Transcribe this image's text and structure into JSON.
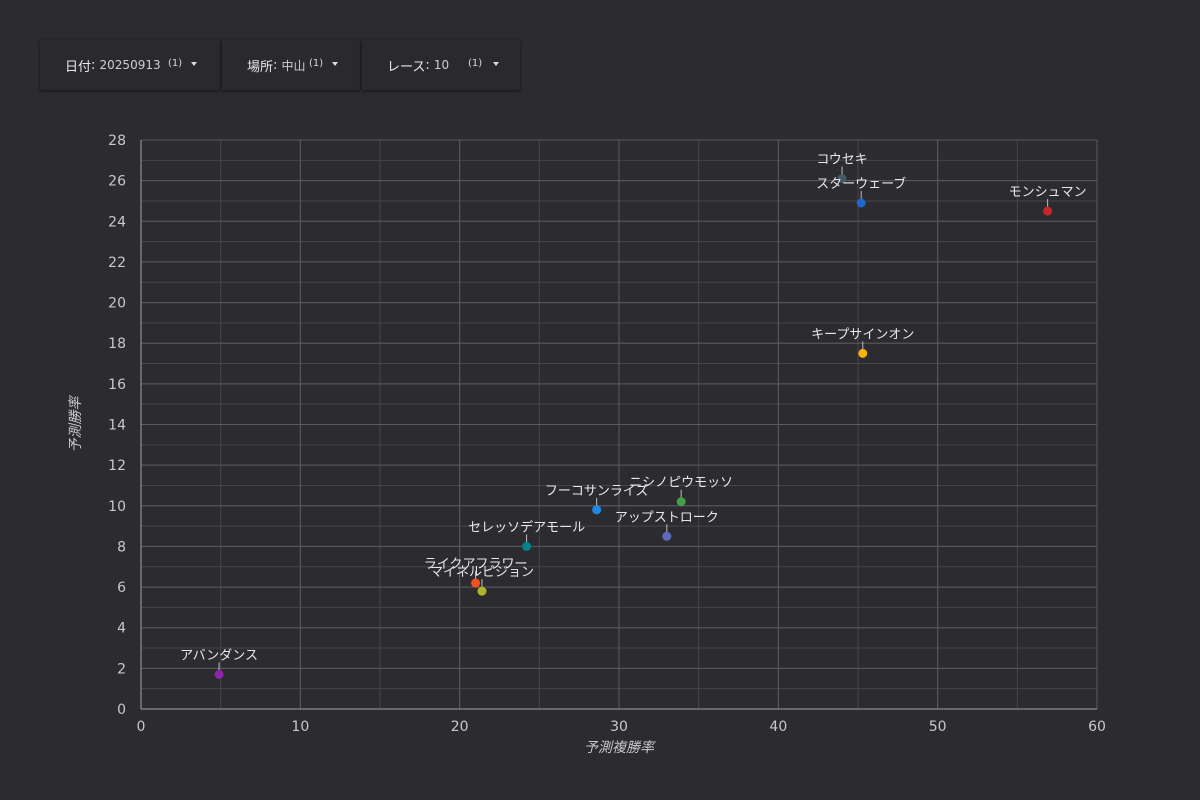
{
  "filters": {
    "date": {
      "label": "日付",
      "value": "20250913",
      "count": "(1)"
    },
    "place": {
      "label": "場所",
      "value": "中山",
      "count": "(1)"
    },
    "race": {
      "label": "レース",
      "value": "10",
      "count": "(1)"
    }
  },
  "chart_data": {
    "type": "scatter",
    "title": "",
    "xlabel": "予測複勝率",
    "ylabel": "予測勝率",
    "xlim": [
      0,
      60
    ],
    "ylim": [
      0,
      28
    ],
    "x_ticks": [
      0,
      10,
      20,
      30,
      40,
      50,
      60
    ],
    "y_ticks": [
      0,
      2,
      4,
      6,
      8,
      10,
      12,
      14,
      16,
      18,
      20,
      22,
      24,
      26,
      28
    ],
    "grid": true,
    "points": [
      {
        "label": "コウセキ",
        "x": 44.0,
        "y": 26.1,
        "color": "#455a64"
      },
      {
        "label": "スターウェーブ",
        "x": 45.2,
        "y": 24.9,
        "color": "#1e66d0"
      },
      {
        "label": "モンシュマン",
        "x": 56.9,
        "y": 24.5,
        "color": "#c62828"
      },
      {
        "label": "キープサインオン",
        "x": 45.3,
        "y": 17.5,
        "color": "#f9b208"
      },
      {
        "label": "ニシノピウモッソ",
        "x": 33.9,
        "y": 10.2,
        "color": "#43a047"
      },
      {
        "label": "フーコサンライズ",
        "x": 28.6,
        "y": 9.8,
        "color": "#1e88e5"
      },
      {
        "label": "アップストローク",
        "x": 33.0,
        "y": 8.5,
        "color": "#5c6bc0"
      },
      {
        "label": "セレッソデアモール",
        "x": 24.2,
        "y": 8.0,
        "color": "#00838f"
      },
      {
        "label": "ライクアフラワー",
        "x": 21.0,
        "y": 6.2,
        "color": "#f4511e"
      },
      {
        "label": "マイネルビジョン",
        "x": 21.4,
        "y": 5.8,
        "color": "#afb42b"
      },
      {
        "label": "アバンダンス",
        "x": 4.9,
        "y": 1.7,
        "color": "#8e24aa"
      }
    ]
  }
}
